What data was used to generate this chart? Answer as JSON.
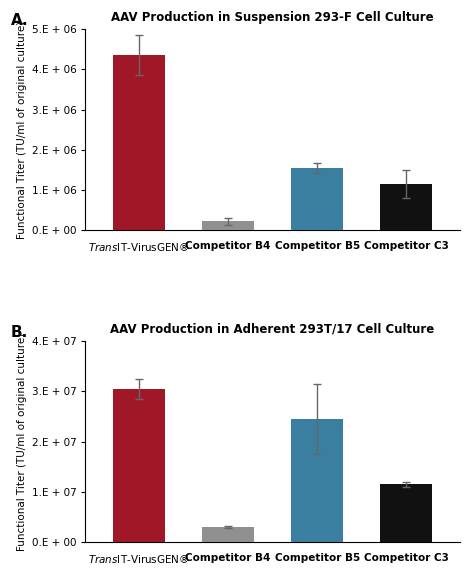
{
  "panel_A": {
    "title": "AAV Production in Suspension 293-F Cell Culture",
    "categories": [
      "TransIT-VirusGEN®",
      "Competitor B4",
      "Competitor B5",
      "Competitor C3"
    ],
    "values": [
      4350000.0,
      220000.0,
      1550000.0,
      1150000.0
    ],
    "errors": [
      500000.0,
      80000.0,
      130000.0,
      350000.0
    ],
    "colors": [
      "#a01828",
      "#909090",
      "#3a7fa0",
      "#111111"
    ],
    "ylim": [
      0,
      5000000.0
    ],
    "yticks": [
      0,
      1000000.0,
      2000000.0,
      3000000.0,
      4000000.0,
      5000000.0
    ],
    "ytick_labels": [
      "0.E + 00",
      "1.E + 06",
      "2.E + 06",
      "3.E + 06",
      "4.E + 06",
      "5.E + 06"
    ],
    "ylabel": "Functional Titer (TU/ml of original culture)",
    "panel_label": "A."
  },
  "panel_B": {
    "title": "AAV Production in Adherent 293T/17 Cell Culture",
    "categories": [
      "TransIT-VirusGEN®",
      "Competitor B4",
      "Competitor B5",
      "Competitor C3"
    ],
    "values": [
      30500000.0,
      3000000.0,
      24500000.0,
      11500000.0
    ],
    "errors": [
      2000000.0,
      200000.0,
      7000000.0,
      500000.0
    ],
    "colors": [
      "#a01828",
      "#909090",
      "#3a7fa0",
      "#111111"
    ],
    "ylim": [
      0,
      40000000.0
    ],
    "yticks": [
      0,
      10000000.0,
      20000000.0,
      30000000.0,
      40000000.0
    ],
    "ytick_labels": [
      "0.E + 00",
      "1.E + 07",
      "2.E + 07",
      "3.E + 07",
      "4.E + 07"
    ],
    "ylabel": "Functional Titer (TU/ml of original culture)",
    "panel_label": "B."
  },
  "background_color": "#ffffff",
  "bar_width": 0.58,
  "figsize": [
    4.74,
    5.83
  ],
  "dpi": 100
}
